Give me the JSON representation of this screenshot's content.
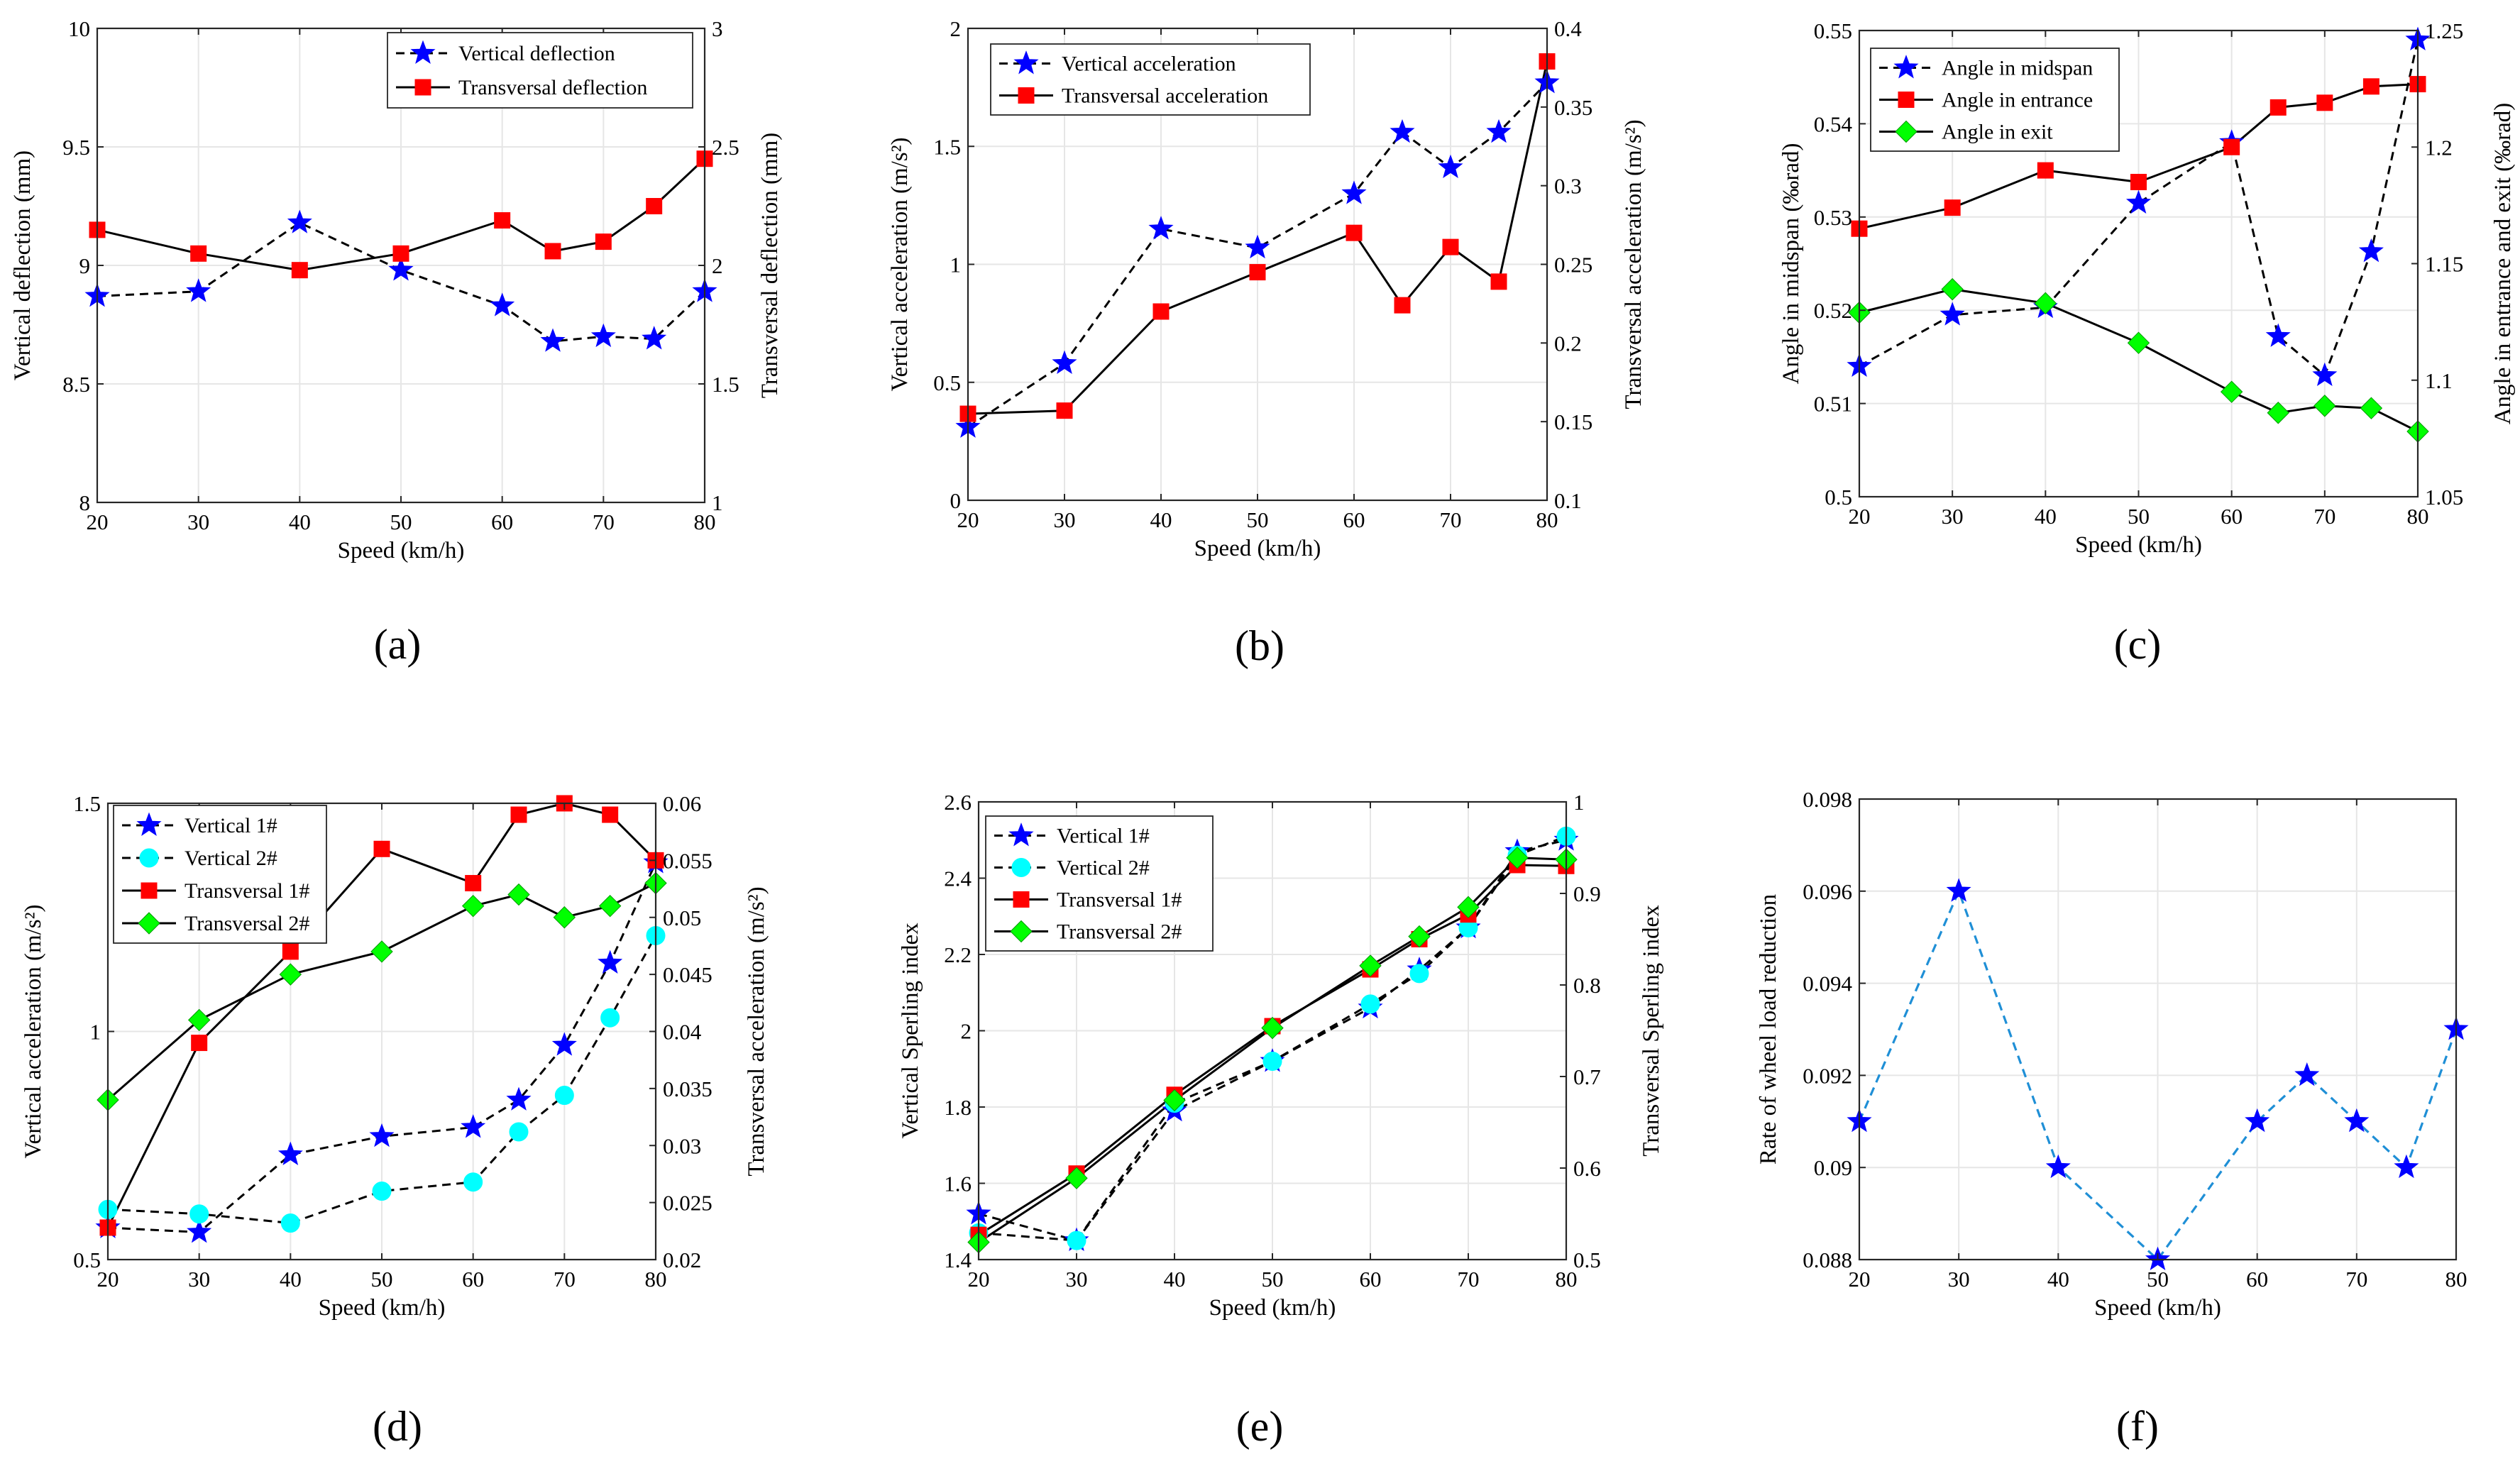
{
  "figure": {
    "panel_labels": [
      "(a)",
      "(b)",
      "(c)",
      "(d)",
      "(e)",
      "(f)"
    ]
  },
  "colors": {
    "star": "#0000ff",
    "square": "#ff0000",
    "circle": "#00ffff",
    "diamond": "#00ff00",
    "dashed_blue_line": "#1f8fd6",
    "grid": "#e6e6e6"
  },
  "chart_data": [
    {
      "id": "a",
      "type": "line",
      "title": "",
      "xlabel": "Speed (km/h)",
      "ylabel": "Vertical deflection (mm)",
      "ylabel_right": "Transversal deflection (mm)",
      "xlim": [
        20,
        80
      ],
      "xticks": [
        "20",
        "30",
        "40",
        "50",
        "60",
        "70",
        "80"
      ],
      "ylim": [
        8,
        10
      ],
      "yticks": [
        "8",
        "8.5",
        "9",
        "9.5",
        "10"
      ],
      "ylim_right": [
        1,
        3
      ],
      "yticks_right": [
        "1",
        "1.5",
        "2",
        "2.5",
        "3"
      ],
      "legend_position": "top-right",
      "grid": true,
      "series": [
        {
          "name": "Vertical deflection",
          "axis": "left",
          "marker": "star",
          "line": "dashed",
          "x": [
            20,
            30,
            40,
            50,
            60,
            65,
            70,
            75,
            80
          ],
          "y": [
            8.87,
            8.89,
            9.18,
            8.98,
            8.83,
            8.68,
            8.7,
            8.69,
            8.89
          ]
        },
        {
          "name": "Transversal deflection",
          "axis": "right",
          "marker": "square",
          "line": "solid",
          "x": [
            20,
            30,
            40,
            50,
            60,
            65,
            70,
            75,
            80
          ],
          "y": [
            2.15,
            2.05,
            1.98,
            2.05,
            2.19,
            2.06,
            2.1,
            2.25,
            2.45
          ]
        }
      ]
    },
    {
      "id": "b",
      "type": "line",
      "title": "",
      "xlabel": "Speed (km/h)",
      "ylabel": "Vertical acceleration (m/s²)",
      "ylabel_right": "Transversal acceleration (m/s²)",
      "xlim": [
        20,
        80
      ],
      "xticks": [
        "20",
        "30",
        "40",
        "50",
        "60",
        "70",
        "80"
      ],
      "ylim": [
        0,
        2
      ],
      "yticks": [
        "0",
        "0.5",
        "1",
        "1.5",
        "2"
      ],
      "ylim_right": [
        0.1,
        0.4
      ],
      "yticks_right": [
        "0.1",
        "0.15",
        "0.2",
        "0.25",
        "0.3",
        "0.35",
        "0.4"
      ],
      "legend_position": "top-left",
      "grid": true,
      "series": [
        {
          "name": "Vertical acceleration",
          "axis": "left",
          "marker": "star",
          "line": "dashed",
          "x": [
            20,
            30,
            40,
            50,
            60,
            65,
            70,
            75,
            80
          ],
          "y": [
            0.31,
            0.58,
            1.15,
            1.07,
            1.3,
            1.56,
            1.41,
            1.56,
            1.77
          ]
        },
        {
          "name": "Transversal acceleration",
          "axis": "right",
          "marker": "square",
          "line": "solid",
          "x": [
            20,
            30,
            40,
            50,
            60,
            65,
            70,
            75,
            80
          ],
          "y": [
            0.155,
            0.157,
            0.22,
            0.245,
            0.27,
            0.224,
            0.261,
            0.239,
            0.379
          ]
        }
      ]
    },
    {
      "id": "c",
      "type": "line",
      "title": "",
      "xlabel": "Speed (km/h)",
      "ylabel": "Angle in midspan (‰rad)",
      "ylabel_right": "Angle in entrance and exit (‰rad)",
      "xlim": [
        20,
        80
      ],
      "xticks": [
        "20",
        "30",
        "40",
        "50",
        "60",
        "70",
        "80"
      ],
      "ylim": [
        0.5,
        0.55
      ],
      "yticks": [
        "0.5",
        "0.51",
        "0.52",
        "0.53",
        "0.54",
        "0.55"
      ],
      "ylim_right": [
        1.05,
        1.25
      ],
      "yticks_right": [
        "1.05",
        "1.1",
        "1.15",
        "1.2",
        "1.25"
      ],
      "legend_position": "top-left",
      "grid": true,
      "series": [
        {
          "name": "Angle in midspan",
          "axis": "left",
          "marker": "star",
          "line": "dashed",
          "x": [
            20,
            30,
            40,
            50,
            60,
            65,
            70,
            75,
            80
          ],
          "y": [
            0.514,
            0.5195,
            0.5203,
            0.5315,
            0.538,
            0.5172,
            0.513,
            0.5263,
            0.549
          ]
        },
        {
          "name": "Angle in entrance",
          "axis": "right",
          "marker": "square",
          "line": "solid",
          "x": [
            20,
            30,
            40,
            50,
            60,
            65,
            70,
            75,
            80
          ],
          "y": [
            1.165,
            1.174,
            1.19,
            1.185,
            1.2,
            1.217,
            1.219,
            1.226,
            1.227
          ]
        },
        {
          "name": "Angle in exit",
          "axis": "right",
          "marker": "diamond",
          "line": "solid",
          "x": [
            20,
            30,
            40,
            50,
            60,
            65,
            70,
            75,
            80
          ],
          "y": [
            1.129,
            1.139,
            1.133,
            1.116,
            1.095,
            1.086,
            1.089,
            1.088,
            1.078
          ]
        }
      ]
    },
    {
      "id": "d",
      "type": "line",
      "title": "",
      "xlabel": "Speed (km/h)",
      "ylabel": "Vertical acceleration (m/s²)",
      "ylabel_right": "Transversal acceleration (m/s²)",
      "xlim": [
        20,
        80
      ],
      "xticks": [
        "20",
        "30",
        "40",
        "50",
        "60",
        "70",
        "80"
      ],
      "ylim": [
        0.5,
        1.5
      ],
      "yticks": [
        "0.5",
        "1",
        "1.5"
      ],
      "ylim_right": [
        0.02,
        0.06
      ],
      "yticks_right": [
        "0.02",
        "0.025",
        "0.03",
        "0.035",
        "0.04",
        "0.045",
        "0.05",
        "0.055",
        "0.06"
      ],
      "legend_position": "top-left",
      "grid": true,
      "series": [
        {
          "name": "Vertical 1#",
          "axis": "left",
          "marker": "star",
          "line": "dashed",
          "x": [
            20,
            30,
            40,
            50,
            60,
            65,
            70,
            75,
            80
          ],
          "y": [
            0.57,
            0.56,
            0.73,
            0.77,
            0.79,
            0.85,
            0.97,
            1.15,
            1.37
          ]
        },
        {
          "name": "Vertical 2#",
          "axis": "left",
          "marker": "circle",
          "line": "dashed",
          "x": [
            20,
            30,
            40,
            50,
            60,
            65,
            70,
            75,
            80
          ],
          "y": [
            0.61,
            0.6,
            0.58,
            0.65,
            0.67,
            0.78,
            0.86,
            1.03,
            1.21
          ]
        },
        {
          "name": "Transversal 1#",
          "axis": "right",
          "marker": "square",
          "line": "solid",
          "x": [
            20,
            30,
            40,
            50,
            60,
            65,
            70,
            75,
            80
          ],
          "y": [
            0.0228,
            0.039,
            0.047,
            0.056,
            0.053,
            0.059,
            0.06,
            0.059,
            0.055
          ]
        },
        {
          "name": "Transversal 2#",
          "axis": "right",
          "marker": "diamond",
          "line": "solid",
          "x": [
            20,
            30,
            40,
            50,
            60,
            65,
            70,
            75,
            80
          ],
          "y": [
            0.034,
            0.041,
            0.045,
            0.047,
            0.051,
            0.052,
            0.05,
            0.051,
            0.053
          ]
        }
      ]
    },
    {
      "id": "e",
      "type": "line",
      "title": "",
      "xlabel": "Speed (km/h)",
      "ylabel": "Vertical Sperling index",
      "ylabel_right": "Transversal Sperling index",
      "xlim": [
        20,
        80
      ],
      "xticks": [
        "20",
        "30",
        "40",
        "50",
        "60",
        "70",
        "80"
      ],
      "ylim": [
        1.4,
        2.6
      ],
      "yticks": [
        "1.4",
        "1.6",
        "1.8",
        "2",
        "2.2",
        "2.4",
        "2.6"
      ],
      "ylim_right": [
        0.5,
        1.0
      ],
      "yticks_right": [
        "0.5",
        "0.6",
        "0.7",
        "0.8",
        "0.9",
        "1"
      ],
      "legend_position": "top-left",
      "grid": true,
      "series": [
        {
          "name": "Vertical 1#",
          "axis": "left",
          "marker": "star",
          "line": "dashed",
          "x": [
            20,
            30,
            40,
            50,
            60,
            65,
            70,
            75,
            80
          ],
          "y": [
            1.52,
            1.45,
            1.79,
            1.92,
            2.06,
            2.16,
            2.27,
            2.47,
            2.5
          ]
        },
        {
          "name": "Vertical 2#",
          "axis": "left",
          "marker": "circle",
          "line": "dashed",
          "x": [
            20,
            30,
            40,
            50,
            60,
            65,
            70,
            75,
            80
          ],
          "y": [
            1.47,
            1.45,
            1.81,
            1.92,
            2.07,
            2.15,
            2.27,
            2.46,
            2.51
          ]
        },
        {
          "name": "Transversal 1#",
          "axis": "right",
          "marker": "square",
          "line": "solid",
          "x": [
            20,
            30,
            40,
            50,
            60,
            65,
            70,
            75,
            80
          ],
          "y": [
            0.527,
            0.594,
            0.68,
            0.755,
            0.817,
            0.85,
            0.877,
            0.931,
            0.93
          ]
        },
        {
          "name": "Transversal 2#",
          "axis": "right",
          "marker": "diamond",
          "line": "solid",
          "x": [
            20,
            30,
            40,
            50,
            60,
            65,
            70,
            75,
            80
          ],
          "y": [
            0.519,
            0.589,
            0.674,
            0.753,
            0.821,
            0.853,
            0.885,
            0.939,
            0.937
          ]
        }
      ]
    },
    {
      "id": "f",
      "type": "line",
      "title": "",
      "xlabel": "Speed (km/h)",
      "ylabel": "Rate of wheel load reduction",
      "ylabel_right": "",
      "xlim": [
        20,
        80
      ],
      "xticks": [
        "20",
        "30",
        "40",
        "50",
        "60",
        "70",
        "80"
      ],
      "ylim": [
        0.088,
        0.098
      ],
      "yticks": [
        "0.088",
        "0.09",
        "0.092",
        "0.094",
        "0.096",
        "0.098"
      ],
      "legend_position": "none",
      "grid": true,
      "series": [
        {
          "name": "Rate of wheel load reduction",
          "axis": "left",
          "marker": "star",
          "line": "dashed-lightblue",
          "x": [
            20,
            30,
            40,
            50,
            60,
            65,
            70,
            75,
            80
          ],
          "y": [
            0.091,
            0.096,
            0.09,
            0.088,
            0.091,
            0.092,
            0.091,
            0.09,
            0.093
          ]
        }
      ]
    }
  ]
}
